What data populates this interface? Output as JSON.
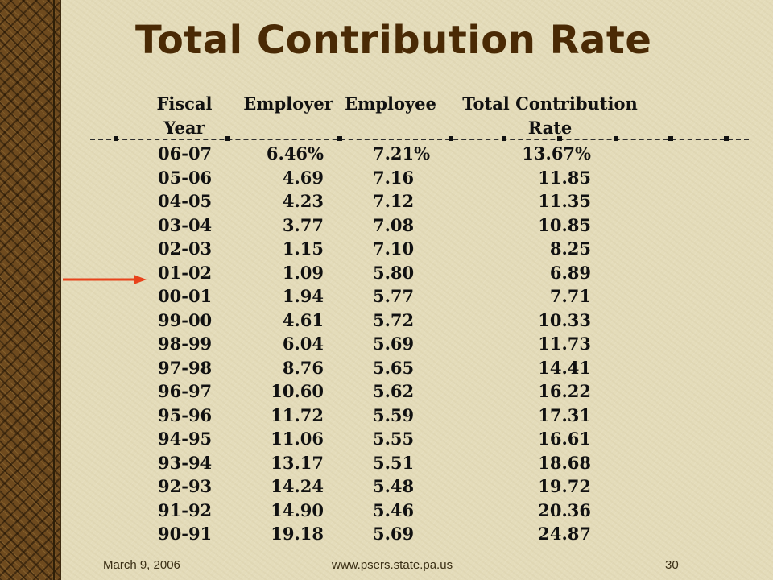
{
  "slide": {
    "title": "Total Contribution Rate",
    "columns": {
      "fiscal_year_1": "Fiscal",
      "fiscal_year_2": "Year",
      "employer": "Employer",
      "employee": "Employee",
      "total_1": "Total Contribution",
      "total_2": "Rate"
    },
    "rows": [
      {
        "year": "06-07",
        "employer": "6.46%",
        "employee": "7.21%",
        "total": "13.67%"
      },
      {
        "year": "05-06",
        "employer": "4.69",
        "employee": "7.16",
        "total": "11.85"
      },
      {
        "year": "04-05",
        "employer": "4.23",
        "employee": "7.12",
        "total": "11.35"
      },
      {
        "year": "03-04",
        "employer": "3.77",
        "employee": "7.08",
        "total": "10.85"
      },
      {
        "year": "02-03",
        "employer": "1.15",
        "employee": "7.10",
        "total": "8.25"
      },
      {
        "year": "01-02",
        "employer": "1.09",
        "employee": "5.80",
        "total": "6.89"
      },
      {
        "year": "00-01",
        "employer": "1.94",
        "employee": "5.77",
        "total": "7.71"
      },
      {
        "year": "99-00",
        "employer": "4.61",
        "employee": "5.72",
        "total": "10.33"
      },
      {
        "year": "98-99",
        "employer": "6.04",
        "employee": "5.69",
        "total": "11.73"
      },
      {
        "year": "97-98",
        "employer": "8.76",
        "employee": "5.65",
        "total": "14.41"
      },
      {
        "year": "96-97",
        "employer": "10.60",
        "employee": "5.62",
        "total": "16.22"
      },
      {
        "year": "95-96",
        "employer": "11.72",
        "employee": "5.59",
        "total": "17.31"
      },
      {
        "year": "94-95",
        "employer": "11.06",
        "employee": "5.55",
        "total": "16.61"
      },
      {
        "year": "93-94",
        "employer": "13.17",
        "employee": "5.51",
        "total": "18.68"
      },
      {
        "year": "92-93",
        "employer": "14.24",
        "employee": "5.48",
        "total": "19.72"
      },
      {
        "year": "91-92",
        "employer": "14.90",
        "employee": "5.46",
        "total": "20.36"
      },
      {
        "year": "90-91",
        "employer": "19.18",
        "employee": "5.69",
        "total": "24.87"
      }
    ],
    "highlighted_row": "01-02",
    "footer": {
      "date": "March 9, 2006",
      "url": "www.psers.state.pa.us",
      "page": "30"
    }
  },
  "colors": {
    "background": "#e4dcba",
    "title": "#4a2a05",
    "band": "#6e4a1e",
    "arrow": "#e8431b"
  },
  "icons": {
    "arrow": "right-arrow-icon"
  }
}
